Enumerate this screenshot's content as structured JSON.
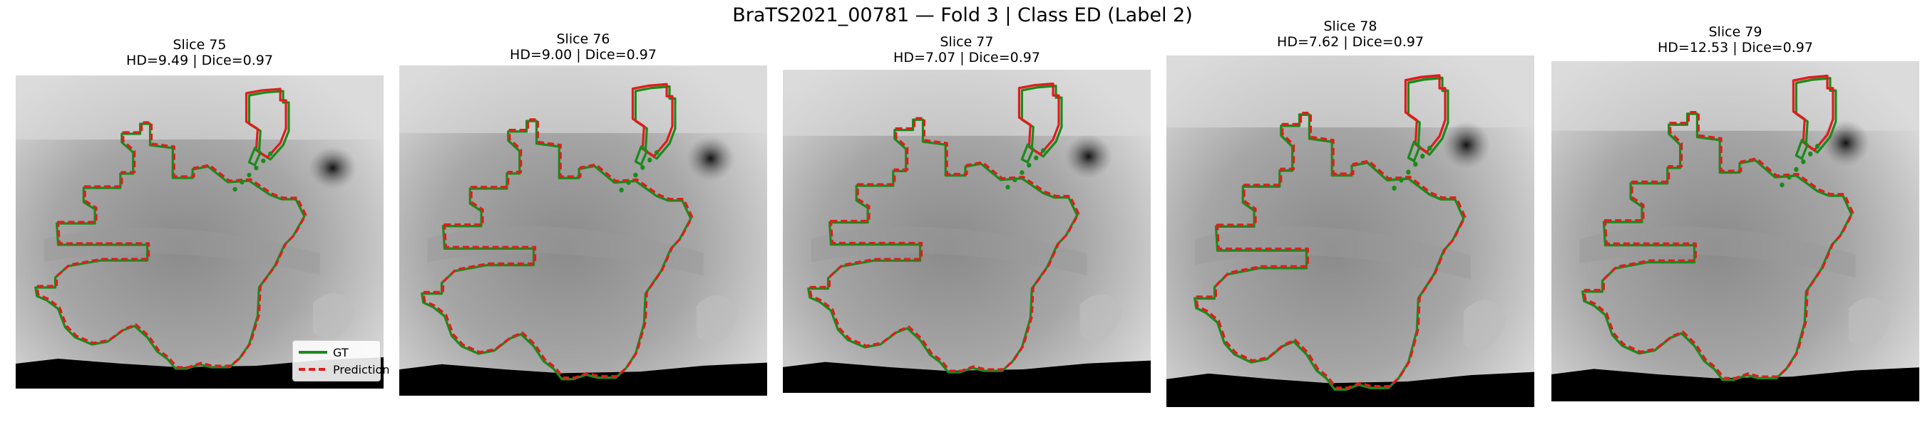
{
  "figure": {
    "suptitle": "BraTS2021_00781 — Fold 3 | Class ED (Label 2)"
  },
  "colors": {
    "gt": "#1a8a1a",
    "prediction": "#e41a1c",
    "background": "#ffffff"
  },
  "legend": {
    "gt_label": "GT",
    "prediction_label": "Prediction"
  },
  "slices": [
    {
      "slice": "Slice 75",
      "metrics": "HD=9.49 | Dice=0.97"
    },
    {
      "slice": "Slice 76",
      "metrics": "HD=9.00 | Dice=0.97"
    },
    {
      "slice": "Slice 77",
      "metrics": "HD=7.07 | Dice=0.97"
    },
    {
      "slice": "Slice 78",
      "metrics": "HD=7.62 | Dice=0.97"
    },
    {
      "slice": "Slice 79",
      "metrics": "HD=12.53 | Dice=0.97"
    }
  ]
}
